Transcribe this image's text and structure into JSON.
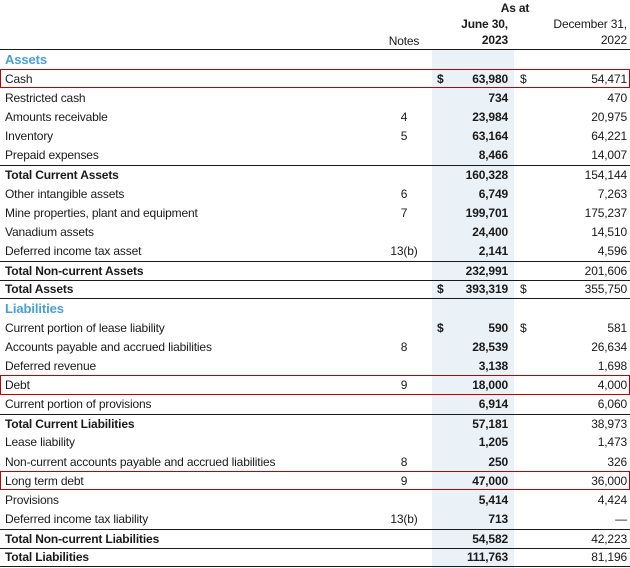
{
  "document": {
    "header": {
      "as_at": "As at",
      "notes_label": "Notes",
      "col_2023": {
        "line1": "June 30,",
        "line2": "2023"
      },
      "col_2022": {
        "line1": "December 31,",
        "line2": "2022"
      }
    },
    "colors": {
      "accent_blue": "#4AA0D5",
      "column_shade": "#EAF1F7",
      "highlight_red": "#C00000",
      "ink": "#1A1A1A",
      "rule": "#1A1A1A"
    },
    "rows": [
      {
        "type": "section",
        "label": "Assets"
      },
      {
        "type": "item",
        "label": "Cash",
        "cur1": "$",
        "v1": "63,980",
        "cur2": "$",
        "v2": "54,471",
        "highlight": true
      },
      {
        "type": "item",
        "label": "Restricted cash",
        "v1": "734",
        "v2": "470"
      },
      {
        "type": "item",
        "label": "Amounts receivable",
        "note": "4",
        "v1": "23,984",
        "v2": "20,975"
      },
      {
        "type": "item",
        "label": "Inventory",
        "note": "5",
        "v1": "63,164",
        "v2": "64,221"
      },
      {
        "type": "item",
        "label": "Prepaid expenses",
        "v1": "8,466",
        "v2": "14,007"
      },
      {
        "type": "total",
        "label": "Total Current Assets",
        "v1": "160,328",
        "v2": "154,144",
        "border_top": true
      },
      {
        "type": "item",
        "label": "Other intangible assets",
        "note": "6",
        "v1": "6,749",
        "v2": "7,263"
      },
      {
        "type": "item",
        "label": "Mine properties, plant and equipment",
        "note": "7",
        "v1": "199,701",
        "v2": "175,237"
      },
      {
        "type": "item",
        "label": "Vanadium assets",
        "v1": "24,400",
        "v2": "14,510"
      },
      {
        "type": "item",
        "label": "Deferred income tax asset",
        "note": "13(b)",
        "v1": "2,141",
        "v2": "4,596"
      },
      {
        "type": "total",
        "label": "Total Non-current Assets",
        "v1": "232,991",
        "v2": "201,606",
        "border_top": true
      },
      {
        "type": "total",
        "label": "Total Assets",
        "cur1": "$",
        "v1": "393,319",
        "cur2": "$",
        "v2": "355,750",
        "border_top": true,
        "border_bottom": true
      },
      {
        "type": "section",
        "label": "Liabilities"
      },
      {
        "type": "item",
        "label": "Current portion of lease liability",
        "cur1": "$",
        "v1": "590",
        "cur2": "$",
        "v2": "581"
      },
      {
        "type": "item",
        "label": "Accounts payable and accrued liabilities",
        "note": "8",
        "v1": "28,539",
        "v2": "26,634"
      },
      {
        "type": "item",
        "label": "Deferred revenue",
        "v1": "3,138",
        "v2": "1,698"
      },
      {
        "type": "item",
        "label": "Debt",
        "note": "9",
        "v1": "18,000",
        "v2": "4,000",
        "highlight": true
      },
      {
        "type": "item",
        "label": "Current portion of provisions",
        "v1": "6,914",
        "v2": "6,060"
      },
      {
        "type": "total",
        "label": "Total Current Liabilities",
        "v1": "57,181",
        "v2": "38,973",
        "border_top": true
      },
      {
        "type": "item",
        "label": "Lease liability",
        "v1": "1,205",
        "v2": "1,473"
      },
      {
        "type": "item",
        "label": "Non-current accounts payable and accrued liabilities",
        "note": "8",
        "v1": "250",
        "v2": "326"
      },
      {
        "type": "item",
        "label": "Long term debt",
        "note": "9",
        "v1": "47,000",
        "v2": "36,000",
        "highlight": true
      },
      {
        "type": "item",
        "label": "Provisions",
        "v1": "5,414",
        "v2": "4,424"
      },
      {
        "type": "item",
        "label": "Deferred income tax liability",
        "note": "13(b)",
        "v1": "713",
        "v2": "—"
      },
      {
        "type": "total",
        "label": "Total Non-current Liabilities",
        "v1": "54,582",
        "v2": "42,223",
        "border_top": true
      },
      {
        "type": "total",
        "label": "Total Liabilities",
        "v1": "111,763",
        "v2": "81,196",
        "border_top": true,
        "border_bottom": true
      }
    ]
  }
}
